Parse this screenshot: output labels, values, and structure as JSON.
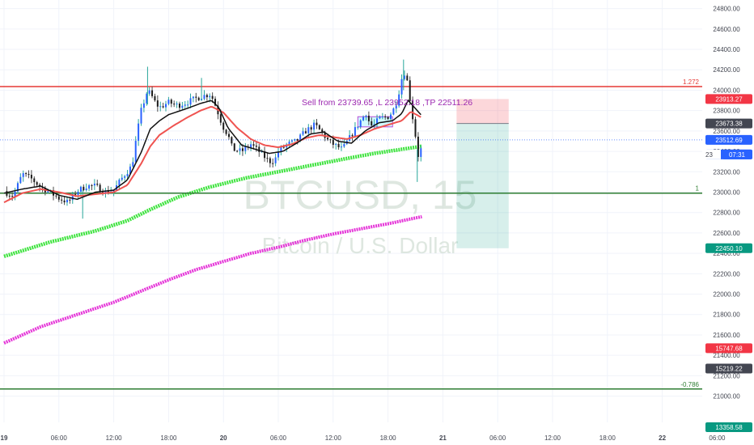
{
  "chart_data": {
    "type": "candlestick",
    "watermark": {
      "symbol": "BTCUSD",
      "interval": "15",
      "separator": ", ",
      "description": "Bitcoin / U.S. Dollar"
    },
    "y_axis": {
      "ylim": [
        20600,
        24900
      ],
      "ticks": [
        21000,
        21200,
        21400,
        21600,
        21800,
        22000,
        22200,
        22400,
        22600,
        22800,
        23000,
        23200,
        23400,
        23600,
        23800,
        24000,
        24200,
        24400,
        24600,
        24800
      ],
      "tick_labels": [
        "21000.00",
        "21200.00",
        "21400.00",
        "21600.00",
        "21800.00",
        "22000.00",
        "22200.00",
        "22400.00",
        "22600.00",
        "22800.00",
        "23000.00",
        "23200.00",
        "23400.00",
        "23600.00",
        "23800.00",
        "24000.00",
        "24200.00",
        "24400.00",
        "24600.00",
        "24800.00"
      ]
    },
    "x_axis": {
      "ticks": [
        {
          "t": 0,
          "label": "19",
          "bold": true
        },
        {
          "t": 6,
          "label": "06:00",
          "bold": false
        },
        {
          "t": 12,
          "label": "12:00",
          "bold": false
        },
        {
          "t": 18,
          "label": "18:00",
          "bold": false
        },
        {
          "t": 24,
          "label": "20",
          "bold": true
        },
        {
          "t": 30,
          "label": "06:00",
          "bold": false
        },
        {
          "t": 36,
          "label": "12:00",
          "bold": false
        },
        {
          "t": 42,
          "label": "18:00",
          "bold": false
        },
        {
          "t": 48,
          "label": "21",
          "bold": true
        },
        {
          "t": 54,
          "label": "06:00",
          "bold": false
        },
        {
          "t": 60,
          "label": "12:00",
          "bold": false
        },
        {
          "t": 66,
          "label": "18:00",
          "bold": false
        },
        {
          "t": 72,
          "label": "22",
          "bold": true
        },
        {
          "t": 78,
          "label": "06:00",
          "bold": false
        }
      ]
    },
    "horizontal_lines": [
      {
        "name": "fib-1.272",
        "price": 24035,
        "color": "#e53935",
        "label": "1.272"
      },
      {
        "name": "fib-1",
        "price": 22990,
        "color": "#2e7d32",
        "label": "1"
      },
      {
        "name": "fib-neg-0.786",
        "price": 21070,
        "color": "#2e7d32",
        "label": "-0.786"
      }
    ],
    "price_badges": [
      {
        "price": 23913.27,
        "label": "23913.27",
        "color": "#f23645"
      },
      {
        "price": 23673.38,
        "label": "23673.38",
        "color": "#434651"
      },
      {
        "price": 23512.69,
        "label": "23512.69",
        "color": "#2962ff"
      },
      {
        "price": 23370,
        "label": "07:31",
        "color": "#2962ff",
        "prefix": "23"
      },
      {
        "price": 22450.1,
        "label": "22450.10",
        "color": "#089981"
      },
      {
        "price": 21470,
        "label": "15747.68",
        "color": "#f23645"
      },
      {
        "price": 21270,
        "label": "15219.22",
        "color": "#434651"
      },
      {
        "price": 20695,
        "label": "13358.58",
        "color": "#089981"
      }
    ],
    "annotation": {
      "text": "Sell from 23739.65 ,L 23952.18 ,TP 22511.26",
      "color": "#9c27b0"
    },
    "sell_zone": {
      "t0": 38.7,
      "t1": 42.5,
      "p_high": 23739.65,
      "p_low": 23640
    },
    "position": {
      "t0": 49.5,
      "t1": 55.2,
      "entry": 23673.38,
      "stop": 23913.27,
      "target": 22450.1
    },
    "current_price": 23512.69,
    "ohlc_keypoints": [
      [
        0,
        23010
      ],
      [
        1,
        22960
      ],
      [
        2,
        23180
      ],
      [
        3,
        23130
      ],
      [
        4,
        23050
      ],
      [
        5,
        23000
      ],
      [
        6,
        22940
      ],
      [
        7,
        22900
      ],
      [
        8,
        23010
      ],
      [
        9,
        23060
      ],
      [
        10,
        23060
      ],
      [
        11,
        23000
      ],
      [
        12,
        23020
      ],
      [
        13,
        23150
      ],
      [
        14,
        23260
      ],
      [
        14.5,
        23550
      ],
      [
        15,
        23800
      ],
      [
        15.7,
        24000
      ],
      [
        16.1,
        23950
      ],
      [
        16.6,
        23870
      ],
      [
        17,
        23830
      ],
      [
        18,
        23880
      ],
      [
        19,
        23850
      ],
      [
        20,
        23880
      ],
      [
        21,
        23920
      ],
      [
        22,
        23950
      ],
      [
        22.6,
        23960
      ],
      [
        23,
        23880
      ],
      [
        23.4,
        23780
      ],
      [
        23.9,
        23650
      ],
      [
        24.5,
        23560
      ],
      [
        25,
        23420
      ],
      [
        26,
        23400
      ],
      [
        27,
        23470
      ],
      [
        28,
        23390
      ],
      [
        29,
        23300
      ],
      [
        29.6,
        23310
      ],
      [
        30,
        23400
      ],
      [
        31,
        23470
      ],
      [
        32,
        23500
      ],
      [
        33,
        23600
      ],
      [
        34,
        23660
      ],
      [
        35,
        23560
      ],
      [
        35.4,
        23510
      ],
      [
        36,
        23470
      ],
      [
        37,
        23420
      ],
      [
        38,
        23560
      ],
      [
        39,
        23700
      ],
      [
        39.7,
        23790
      ],
      [
        40,
        23650
      ],
      [
        40.5,
        23660
      ],
      [
        41,
        23720
      ],
      [
        42,
        23740
      ],
      [
        42.5,
        23790
      ],
      [
        43,
        23900
      ],
      [
        43.7,
        24200
      ],
      [
        44.2,
        24060
      ],
      [
        44.5,
        23840
      ],
      [
        44.9,
        23620
      ],
      [
        45.3,
        23360
      ],
      [
        45.7,
        23440
      ]
    ],
    "ema_fast": [
      [
        0,
        22990
      ],
      [
        2,
        23030
      ],
      [
        4,
        23060
      ],
      [
        6,
        22970
      ],
      [
        8,
        22930
      ],
      [
        10,
        23000
      ],
      [
        12,
        23020
      ],
      [
        13.5,
        23120
      ],
      [
        15,
        23390
      ],
      [
        16,
        23620
      ],
      [
        17,
        23700
      ],
      [
        18,
        23760
      ],
      [
        20,
        23820
      ],
      [
        21.5,
        23870
      ],
      [
        22.7,
        23900
      ],
      [
        23.5,
        23830
      ],
      [
        24.5,
        23630
      ],
      [
        26,
        23460
      ],
      [
        27.5,
        23420
      ],
      [
        29,
        23380
      ],
      [
        30.5,
        23400
      ],
      [
        32,
        23480
      ],
      [
        33.5,
        23570
      ],
      [
        35,
        23590
      ],
      [
        36.5,
        23500
      ],
      [
        38,
        23480
      ],
      [
        39.5,
        23600
      ],
      [
        41,
        23680
      ],
      [
        42.5,
        23700
      ],
      [
        43.5,
        23770
      ],
      [
        44.2,
        23900
      ],
      [
        45,
        23820
      ],
      [
        45.7,
        23750
      ]
    ],
    "ema_slow": [
      [
        0,
        22900
      ],
      [
        2,
        22990
      ],
      [
        4,
        23030
      ],
      [
        6,
        23000
      ],
      [
        8,
        22960
      ],
      [
        10,
        22980
      ],
      [
        12,
        23000
      ],
      [
        13.5,
        23070
      ],
      [
        15,
        23280
      ],
      [
        16,
        23450
      ],
      [
        17,
        23560
      ],
      [
        18.5,
        23650
      ],
      [
        20,
        23730
      ],
      [
        21.5,
        23800
      ],
      [
        22.7,
        23840
      ],
      [
        24,
        23780
      ],
      [
        25.5,
        23630
      ],
      [
        27,
        23520
      ],
      [
        28.5,
        23460
      ],
      [
        30,
        23440
      ],
      [
        31.5,
        23470
      ],
      [
        33,
        23530
      ],
      [
        34.5,
        23560
      ],
      [
        36,
        23540
      ],
      [
        37.5,
        23520
      ],
      [
        39,
        23560
      ],
      [
        40.5,
        23620
      ],
      [
        42,
        23660
      ],
      [
        43.5,
        23700
      ],
      [
        44.5,
        23790
      ],
      [
        45.7,
        23730
      ]
    ],
    "ma_green": [
      [
        0,
        22370
      ],
      [
        5,
        22510
      ],
      [
        10,
        22620
      ],
      [
        13.5,
        22720
      ],
      [
        16,
        22830
      ],
      [
        19,
        22950
      ],
      [
        22.5,
        23050
      ],
      [
        26.5,
        23140
      ],
      [
        30,
        23200
      ],
      [
        34,
        23270
      ],
      [
        37.5,
        23330
      ],
      [
        40.5,
        23380
      ],
      [
        43.5,
        23420
      ],
      [
        45.7,
        23450
      ]
    ],
    "ma_magenta": [
      [
        0,
        21520
      ],
      [
        4,
        21680
      ],
      [
        8,
        21800
      ],
      [
        12,
        21920
      ],
      [
        15,
        22030
      ],
      [
        18,
        22140
      ],
      [
        21,
        22240
      ],
      [
        24,
        22320
      ],
      [
        27,
        22400
      ],
      [
        30,
        22460
      ],
      [
        33,
        22530
      ],
      [
        36,
        22590
      ],
      [
        39,
        22640
      ],
      [
        42,
        22690
      ],
      [
        45.7,
        22760
      ]
    ]
  }
}
